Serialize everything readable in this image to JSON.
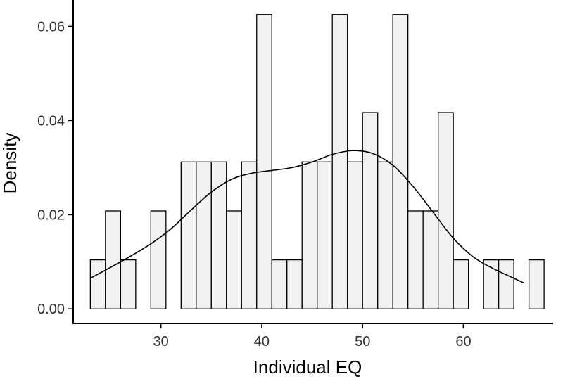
{
  "chart_data": {
    "type": "histogram",
    "xlabel": "Individual EQ",
    "ylabel": "Density",
    "xlim": [
      21.3,
      68.9
    ],
    "ylim": [
      -0.0031,
      0.0656
    ],
    "x_ticks": [
      30,
      40,
      50,
      60
    ],
    "x_tick_labels": [
      "30",
      "40",
      "50",
      "60"
    ],
    "y_ticks": [
      0,
      0.02,
      0.04,
      0.06
    ],
    "y_tick_labels": [
      "0.00",
      "0.02",
      "0.04",
      "0.06"
    ],
    "grid": false,
    "colors": {
      "bar_fill": "#f2f2f2",
      "bar_stroke": "#000000",
      "line": "#000000",
      "axis": "#000000"
    },
    "histogram": {
      "bin_width": 1.5,
      "bins": [
        {
          "start": 23.0,
          "end": 24.5,
          "density": 0.0104
        },
        {
          "start": 24.5,
          "end": 26.0,
          "density": 0.0208
        },
        {
          "start": 26.0,
          "end": 27.5,
          "density": 0.0104
        },
        {
          "start": 29.0,
          "end": 30.5,
          "density": 0.0208
        },
        {
          "start": 32.0,
          "end": 33.5,
          "density": 0.0312
        },
        {
          "start": 33.5,
          "end": 35.0,
          "density": 0.0312
        },
        {
          "start": 35.0,
          "end": 36.5,
          "density": 0.0312
        },
        {
          "start": 36.5,
          "end": 38.0,
          "density": 0.0208
        },
        {
          "start": 38.0,
          "end": 39.5,
          "density": 0.0312
        },
        {
          "start": 39.5,
          "end": 41.0,
          "density": 0.0625
        },
        {
          "start": 41.0,
          "end": 42.5,
          "density": 0.0104
        },
        {
          "start": 42.5,
          "end": 44.0,
          "density": 0.0104
        },
        {
          "start": 44.0,
          "end": 45.5,
          "density": 0.0312
        },
        {
          "start": 45.5,
          "end": 47.0,
          "density": 0.0312
        },
        {
          "start": 47.0,
          "end": 48.5,
          "density": 0.0625
        },
        {
          "start": 48.5,
          "end": 50.0,
          "density": 0.0312
        },
        {
          "start": 50.0,
          "end": 51.5,
          "density": 0.0417
        },
        {
          "start": 51.5,
          "end": 53.0,
          "density": 0.0312
        },
        {
          "start": 53.0,
          "end": 54.5,
          "density": 0.0625
        },
        {
          "start": 54.5,
          "end": 56.0,
          "density": 0.0208
        },
        {
          "start": 56.0,
          "end": 57.5,
          "density": 0.0208
        },
        {
          "start": 57.5,
          "end": 59.0,
          "density": 0.0417
        },
        {
          "start": 59.0,
          "end": 60.5,
          "density": 0.0104
        },
        {
          "start": 62.0,
          "end": 63.5,
          "density": 0.0104
        },
        {
          "start": 63.5,
          "end": 65.0,
          "density": 0.0104
        },
        {
          "start": 66.5,
          "end": 68.0,
          "density": 0.0104
        }
      ]
    },
    "density_curve": {
      "x": [
        23,
        25,
        27,
        29,
        31,
        33,
        35,
        37,
        39,
        41,
        43,
        45,
        47,
        49,
        51,
        53,
        55,
        57,
        59,
        61,
        63,
        65,
        66
      ],
      "y": [
        0.0065,
        0.0088,
        0.0112,
        0.0138,
        0.017,
        0.021,
        0.0248,
        0.0275,
        0.0288,
        0.0294,
        0.03,
        0.0312,
        0.0328,
        0.0336,
        0.033,
        0.0305,
        0.026,
        0.0205,
        0.015,
        0.011,
        0.0085,
        0.0065,
        0.0055
      ]
    }
  }
}
